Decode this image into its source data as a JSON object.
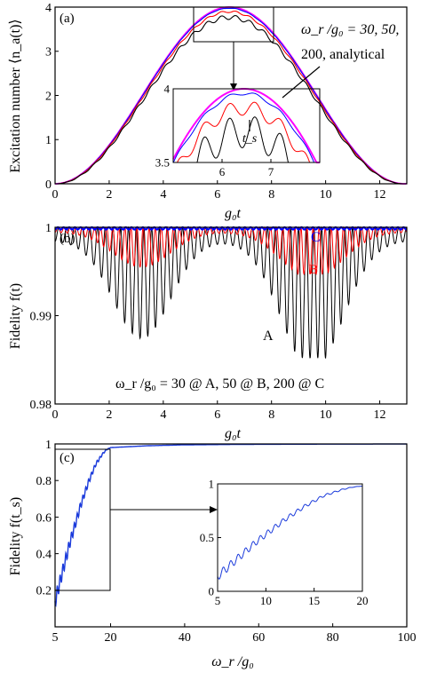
{
  "colors": {
    "A": "#000000",
    "B": "#ff0000",
    "C": "#0000ff",
    "analytical": "#ff00ff",
    "axis": "#000000",
    "cline": "#1a3adb"
  },
  "panel_a": {
    "label": "(a)",
    "ylabel": "Excitation number ⟨n_a(t)⟩",
    "xlabel": "g₀t",
    "legend_lines": [
      "ω_r /g₀ = 30, 50,",
      "200, analytical"
    ],
    "inset_ts_label": "t_s"
  },
  "panel_b": {
    "label": "(b)",
    "ylabel": "Fidelity f(t)",
    "xlabel": "g₀t",
    "label_A": "A",
    "label_B": "B",
    "label_C": "C",
    "legend": "ω_r /g₀ = 30 @ A, 50 @ B, 200 @ C"
  },
  "panel_c": {
    "label": "(c)",
    "ylabel": "Fidelity f(t_s)",
    "xlabel": "ω_r /g₀"
  },
  "chart_data": [
    {
      "type": "line",
      "id": "a",
      "xlim": [
        0,
        13
      ],
      "ylim": [
        0,
        4
      ],
      "xticks": [
        0,
        2,
        4,
        6,
        8,
        10,
        12
      ],
      "yticks": [
        0,
        1,
        2,
        3,
        4
      ],
      "series": [
        {
          "name": "ω_r/g₀ = 30",
          "peak": 3.82,
          "ripple": 0.1
        },
        {
          "name": "ω_r/g₀ = 50",
          "peak": 3.92,
          "ripple": 0.045
        },
        {
          "name": "ω_r/g₀ = 200",
          "peak": 3.98,
          "ripple": 0.01
        },
        {
          "name": "analytical",
          "peak": 4.0,
          "ripple": 0
        }
      ],
      "peak_time": 6.45,
      "inset": {
        "xlim": [
          5,
          8
        ],
        "ylim": [
          3.5,
          4
        ],
        "xticks": [
          6,
          7
        ],
        "yticks": [
          3.5,
          4
        ],
        "ts": 6.45
      }
    },
    {
      "type": "line",
      "id": "b",
      "xlim": [
        0,
        13
      ],
      "ylim": [
        0.98,
        1
      ],
      "xticks": [
        0,
        2,
        4,
        6,
        8,
        10,
        12
      ],
      "yticks": [
        0.98,
        0.99,
        1
      ],
      "yticklabels": [
        "0.98",
        "0.99",
        "1"
      ],
      "series": [
        {
          "name": "A",
          "min_fidelity": 0.9852
        },
        {
          "name": "B",
          "min_fidelity": 0.9947
        },
        {
          "name": "C",
          "min_fidelity": 0.9995
        }
      ]
    },
    {
      "type": "line",
      "id": "c",
      "xlim": [
        5,
        100
      ],
      "ylim": [
        0,
        1
      ],
      "xticks": [
        5,
        20,
        40,
        60,
        80,
        100
      ],
      "yticks": [
        0.2,
        0.4,
        0.6,
        0.8,
        1
      ],
      "x": [
        5,
        6,
        7,
        8,
        9,
        10,
        11,
        12,
        13,
        14,
        15,
        16,
        17,
        18,
        19,
        20,
        25,
        30,
        40,
        60,
        80,
        100
      ],
      "y": [
        0.14,
        0.22,
        0.3,
        0.38,
        0.46,
        0.53,
        0.6,
        0.67,
        0.73,
        0.79,
        0.84,
        0.89,
        0.92,
        0.95,
        0.97,
        0.98,
        0.985,
        0.99,
        0.995,
        0.998,
        0.999,
        0.9995
      ],
      "inset": {
        "xlim": [
          5,
          20
        ],
        "ylim": [
          0,
          1
        ],
        "xticks": [
          5,
          10,
          15,
          20
        ],
        "yticks": [
          0,
          0.5,
          1
        ],
        "yticklabels": [
          "0",
          "0.5",
          "1"
        ]
      }
    }
  ]
}
